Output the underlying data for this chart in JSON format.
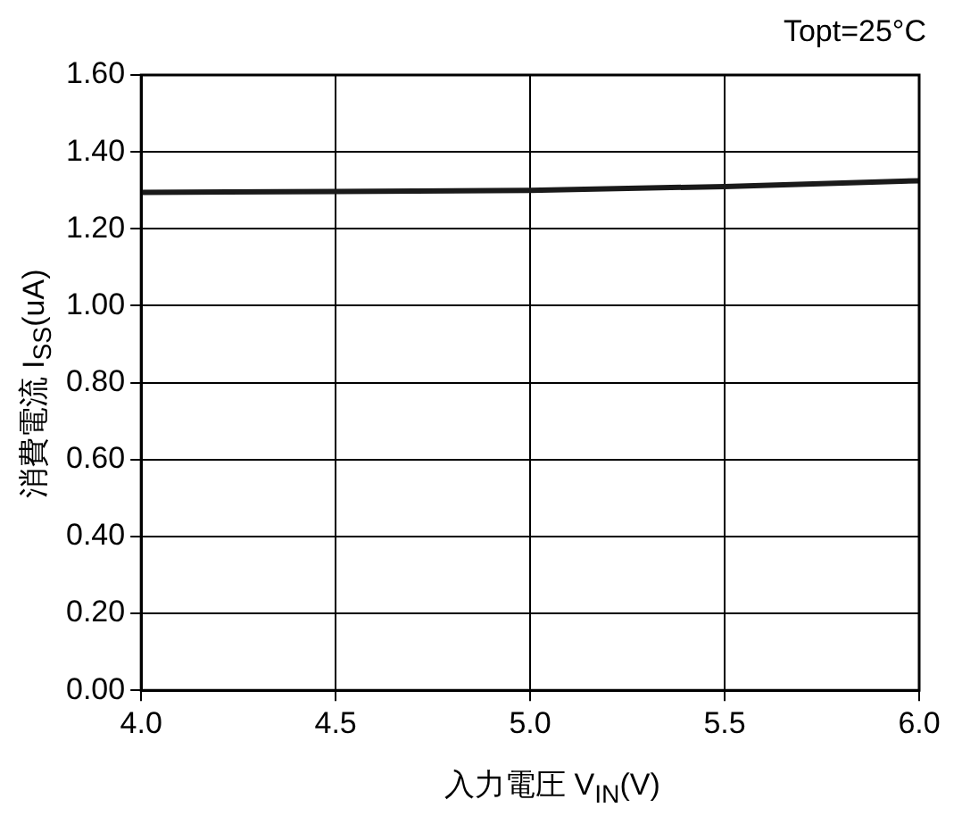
{
  "chart_data": {
    "type": "line",
    "xlabel": "入力電圧 V$_{IN}$(V)",
    "ylabel": "消費電流 I$_{SS}$(uA)",
    "annotations": [
      "Topt=25°C"
    ],
    "x": [
      4.0,
      4.5,
      5.0,
      5.5,
      6.0
    ],
    "series": [
      {
        "color": "#1a1a1a",
        "values": [
          1.295,
          1.297,
          1.3,
          1.31,
          1.325
        ]
      }
    ],
    "xlim": [
      4.0,
      6.0
    ],
    "xticks": [
      {
        "value": 4,
        "label": "4.0"
      },
      {
        "value": 4.5,
        "label": "4.5"
      },
      {
        "value": 5,
        "label": "5.0"
      },
      {
        "value": 5.5,
        "label": "5.5"
      },
      {
        "value": 6,
        "label": "6.0"
      }
    ],
    "ylim": [
      0,
      1.6
    ],
    "yticks": [
      {
        "value": 0,
        "label": "0.00"
      },
      {
        "value": 0.2,
        "label": "0.20"
      },
      {
        "value": 0.4,
        "label": "0.40"
      },
      {
        "value": 0.6,
        "label": "0.60"
      },
      {
        "value": 0.8,
        "label": "0.80"
      },
      {
        "value": 1,
        "label": "1.00"
      },
      {
        "value": 1.2,
        "label": "1.20"
      },
      {
        "value": 1.4,
        "label": "1.40"
      },
      {
        "value": 1.6,
        "label": "1.60"
      }
    ],
    "grid": true,
    "legend": false,
    "marker": "none",
    "line_style": "solid"
  }
}
